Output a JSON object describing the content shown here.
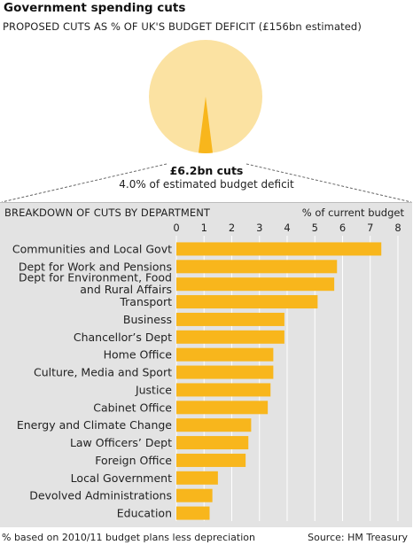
{
  "title": "Government spending cuts",
  "subtitle": "PROPOSED CUTS AS % OF UK'S BUDGET DEFICIT (£156bn estimated)",
  "pie": {
    "amount_label": "£6.2bn cuts",
    "description": "4.0% of estimated budget deficit",
    "slice_percent": 4.0
  },
  "breakdown_title": "BREAKDOWN OF CUTS BY DEPARTMENT",
  "unit_label": "% of current budget",
  "footnote": "% based on 2010/11 budget plans less depreciation",
  "source": "Source: HM Treasury",
  "colors": {
    "pie_fill": "#fbe2a2",
    "slice_fill": "#f8b61c",
    "bar_fill": "#f8b61c",
    "panel_bg": "#e3e3e3",
    "grid": "#ffffff"
  },
  "chart_data": {
    "type": "bar",
    "orientation": "horizontal",
    "categories": [
      "Communities and Local Govt",
      "Dept for Work and Pensions",
      "Dept for Environment, Food and Rural Affairs",
      "Transport",
      "Business",
      "Chancellor’s Dept",
      "Home Office",
      "Culture, Media and Sport",
      "Justice",
      "Cabinet Office",
      "Energy and Climate Change",
      "Law Officers’ Dept",
      "Foreign Office",
      "Local Government",
      "Devolved Administrations",
      "Education"
    ],
    "category_lines": [
      [
        "Communities and Local Govt"
      ],
      [
        "Dept for Work and Pensions"
      ],
      [
        "Dept for Environment, Food",
        "and Rural Affairs"
      ],
      [
        "Transport"
      ],
      [
        "Business"
      ],
      [
        "Chancellor’s Dept"
      ],
      [
        "Home Office"
      ],
      [
        "Culture, Media and Sport"
      ],
      [
        "Justice"
      ],
      [
        "Cabinet Office"
      ],
      [
        "Energy and Climate Change"
      ],
      [
        "Law Officers’ Dept"
      ],
      [
        "Foreign Office"
      ],
      [
        "Local Government"
      ],
      [
        "Devolved Administrations"
      ],
      [
        "Education"
      ]
    ],
    "values": [
      7.4,
      5.8,
      5.7,
      5.1,
      3.9,
      3.9,
      3.5,
      3.5,
      3.4,
      3.3,
      2.7,
      2.6,
      2.5,
      1.5,
      1.3,
      1.2
    ],
    "xlim": [
      0,
      8
    ],
    "xticks": [
      0,
      1,
      2,
      3,
      4,
      5,
      6,
      7,
      8
    ],
    "grid": true
  }
}
